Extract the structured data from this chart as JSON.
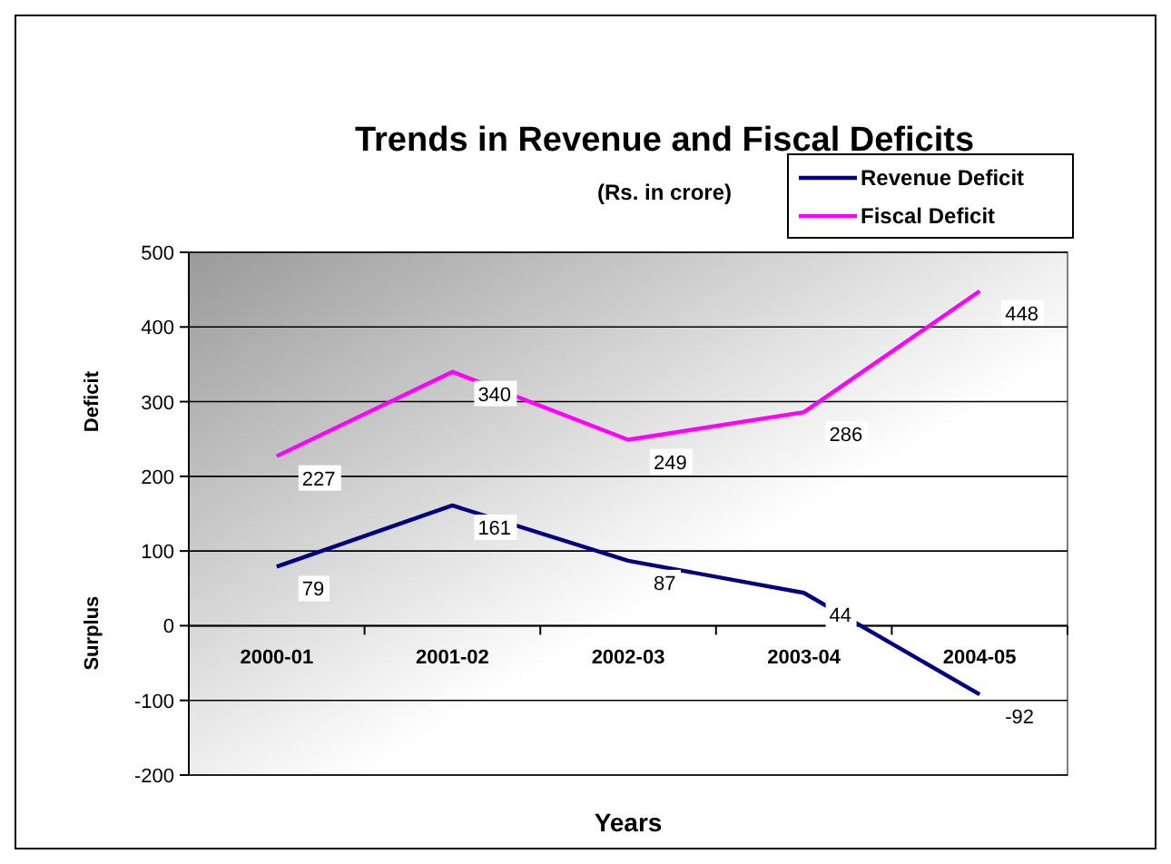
{
  "chart_data": {
    "type": "line",
    "title": "Trends in Revenue and Fiscal Deficits",
    "subtitle": "(Rs. in crore)",
    "xlabel": "Years",
    "ylabel": "Deficit",
    "annotations": [
      "Surplus"
    ],
    "categories": [
      "2000-01",
      "2001-02",
      "2002-03",
      "2003-04",
      "2004-05"
    ],
    "series": [
      {
        "name": "Revenue Deficit",
        "color": "#000080",
        "values": [
          79,
          161,
          87,
          44,
          -92
        ]
      },
      {
        "name": "Fiscal Deficit",
        "color": "#ff00ff",
        "values": [
          227,
          340,
          249,
          286,
          448
        ]
      }
    ],
    "ylim": [
      -200,
      500
    ],
    "yticks": [
      -200,
      -100,
      0,
      100,
      200,
      300,
      400,
      500
    ],
    "grid": "y",
    "legend": "top right",
    "data_labels": true,
    "marker": "none",
    "line_style": "solid"
  }
}
